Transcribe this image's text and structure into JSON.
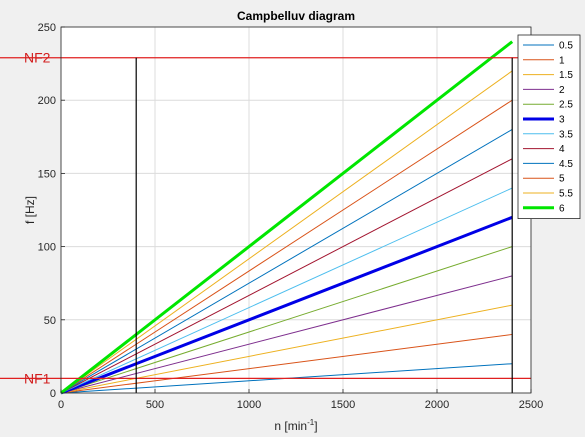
{
  "chart_data": {
    "type": "line",
    "title": "Campbelluv diagram",
    "xlabel": "n [min",
    "xlabel_sup": "-1",
    "xlabel_end": "]",
    "ylabel": "f [Hz]",
    "xlim": [
      0,
      2500
    ],
    "ylim": [
      0,
      250
    ],
    "xticks": [
      0,
      500,
      1000,
      1500,
      2000,
      2500
    ],
    "yticks": [
      0,
      50,
      100,
      150,
      200,
      250
    ],
    "grid": true,
    "legend_position": "right-outside-top",
    "x": [
      0,
      2400
    ],
    "series": [
      {
        "name": "0.5",
        "values": [
          0,
          20
        ],
        "color": "#0072BD",
        "width": 1
      },
      {
        "name": "1",
        "values": [
          0,
          40
        ],
        "color": "#D95319",
        "width": 1
      },
      {
        "name": "1.5",
        "values": [
          0,
          60
        ],
        "color": "#EDB120",
        "width": 1
      },
      {
        "name": "2",
        "values": [
          0,
          80
        ],
        "color": "#7E2F8E",
        "width": 1
      },
      {
        "name": "2.5",
        "values": [
          0,
          100
        ],
        "color": "#77AC30",
        "width": 1
      },
      {
        "name": "3",
        "values": [
          0,
          120
        ],
        "color": "#0000E6",
        "width": 3
      },
      {
        "name": "3.5",
        "values": [
          0,
          140
        ],
        "color": "#4DBEEE",
        "width": 1
      },
      {
        "name": "4",
        "values": [
          0,
          160
        ],
        "color": "#A2142F",
        "width": 1
      },
      {
        "name": "4.5",
        "values": [
          0,
          180
        ],
        "color": "#0072BD",
        "width": 1
      },
      {
        "name": "5",
        "values": [
          0,
          200
        ],
        "color": "#D95319",
        "width": 1
      },
      {
        "name": "5.5",
        "values": [
          0,
          220
        ],
        "color": "#EDB120",
        "width": 1
      },
      {
        "name": "6",
        "values": [
          0,
          240
        ],
        "color": "#00E600",
        "width": 3
      }
    ],
    "hlines": [
      {
        "label": "NF2",
        "y": 229,
        "color": "#e02020"
      },
      {
        "label": "NF1",
        "y": 10,
        "color": "#e02020"
      }
    ],
    "vlines": [
      {
        "x": 400,
        "color": "#000000"
      },
      {
        "x": 2400,
        "color": "#000000"
      }
    ]
  }
}
